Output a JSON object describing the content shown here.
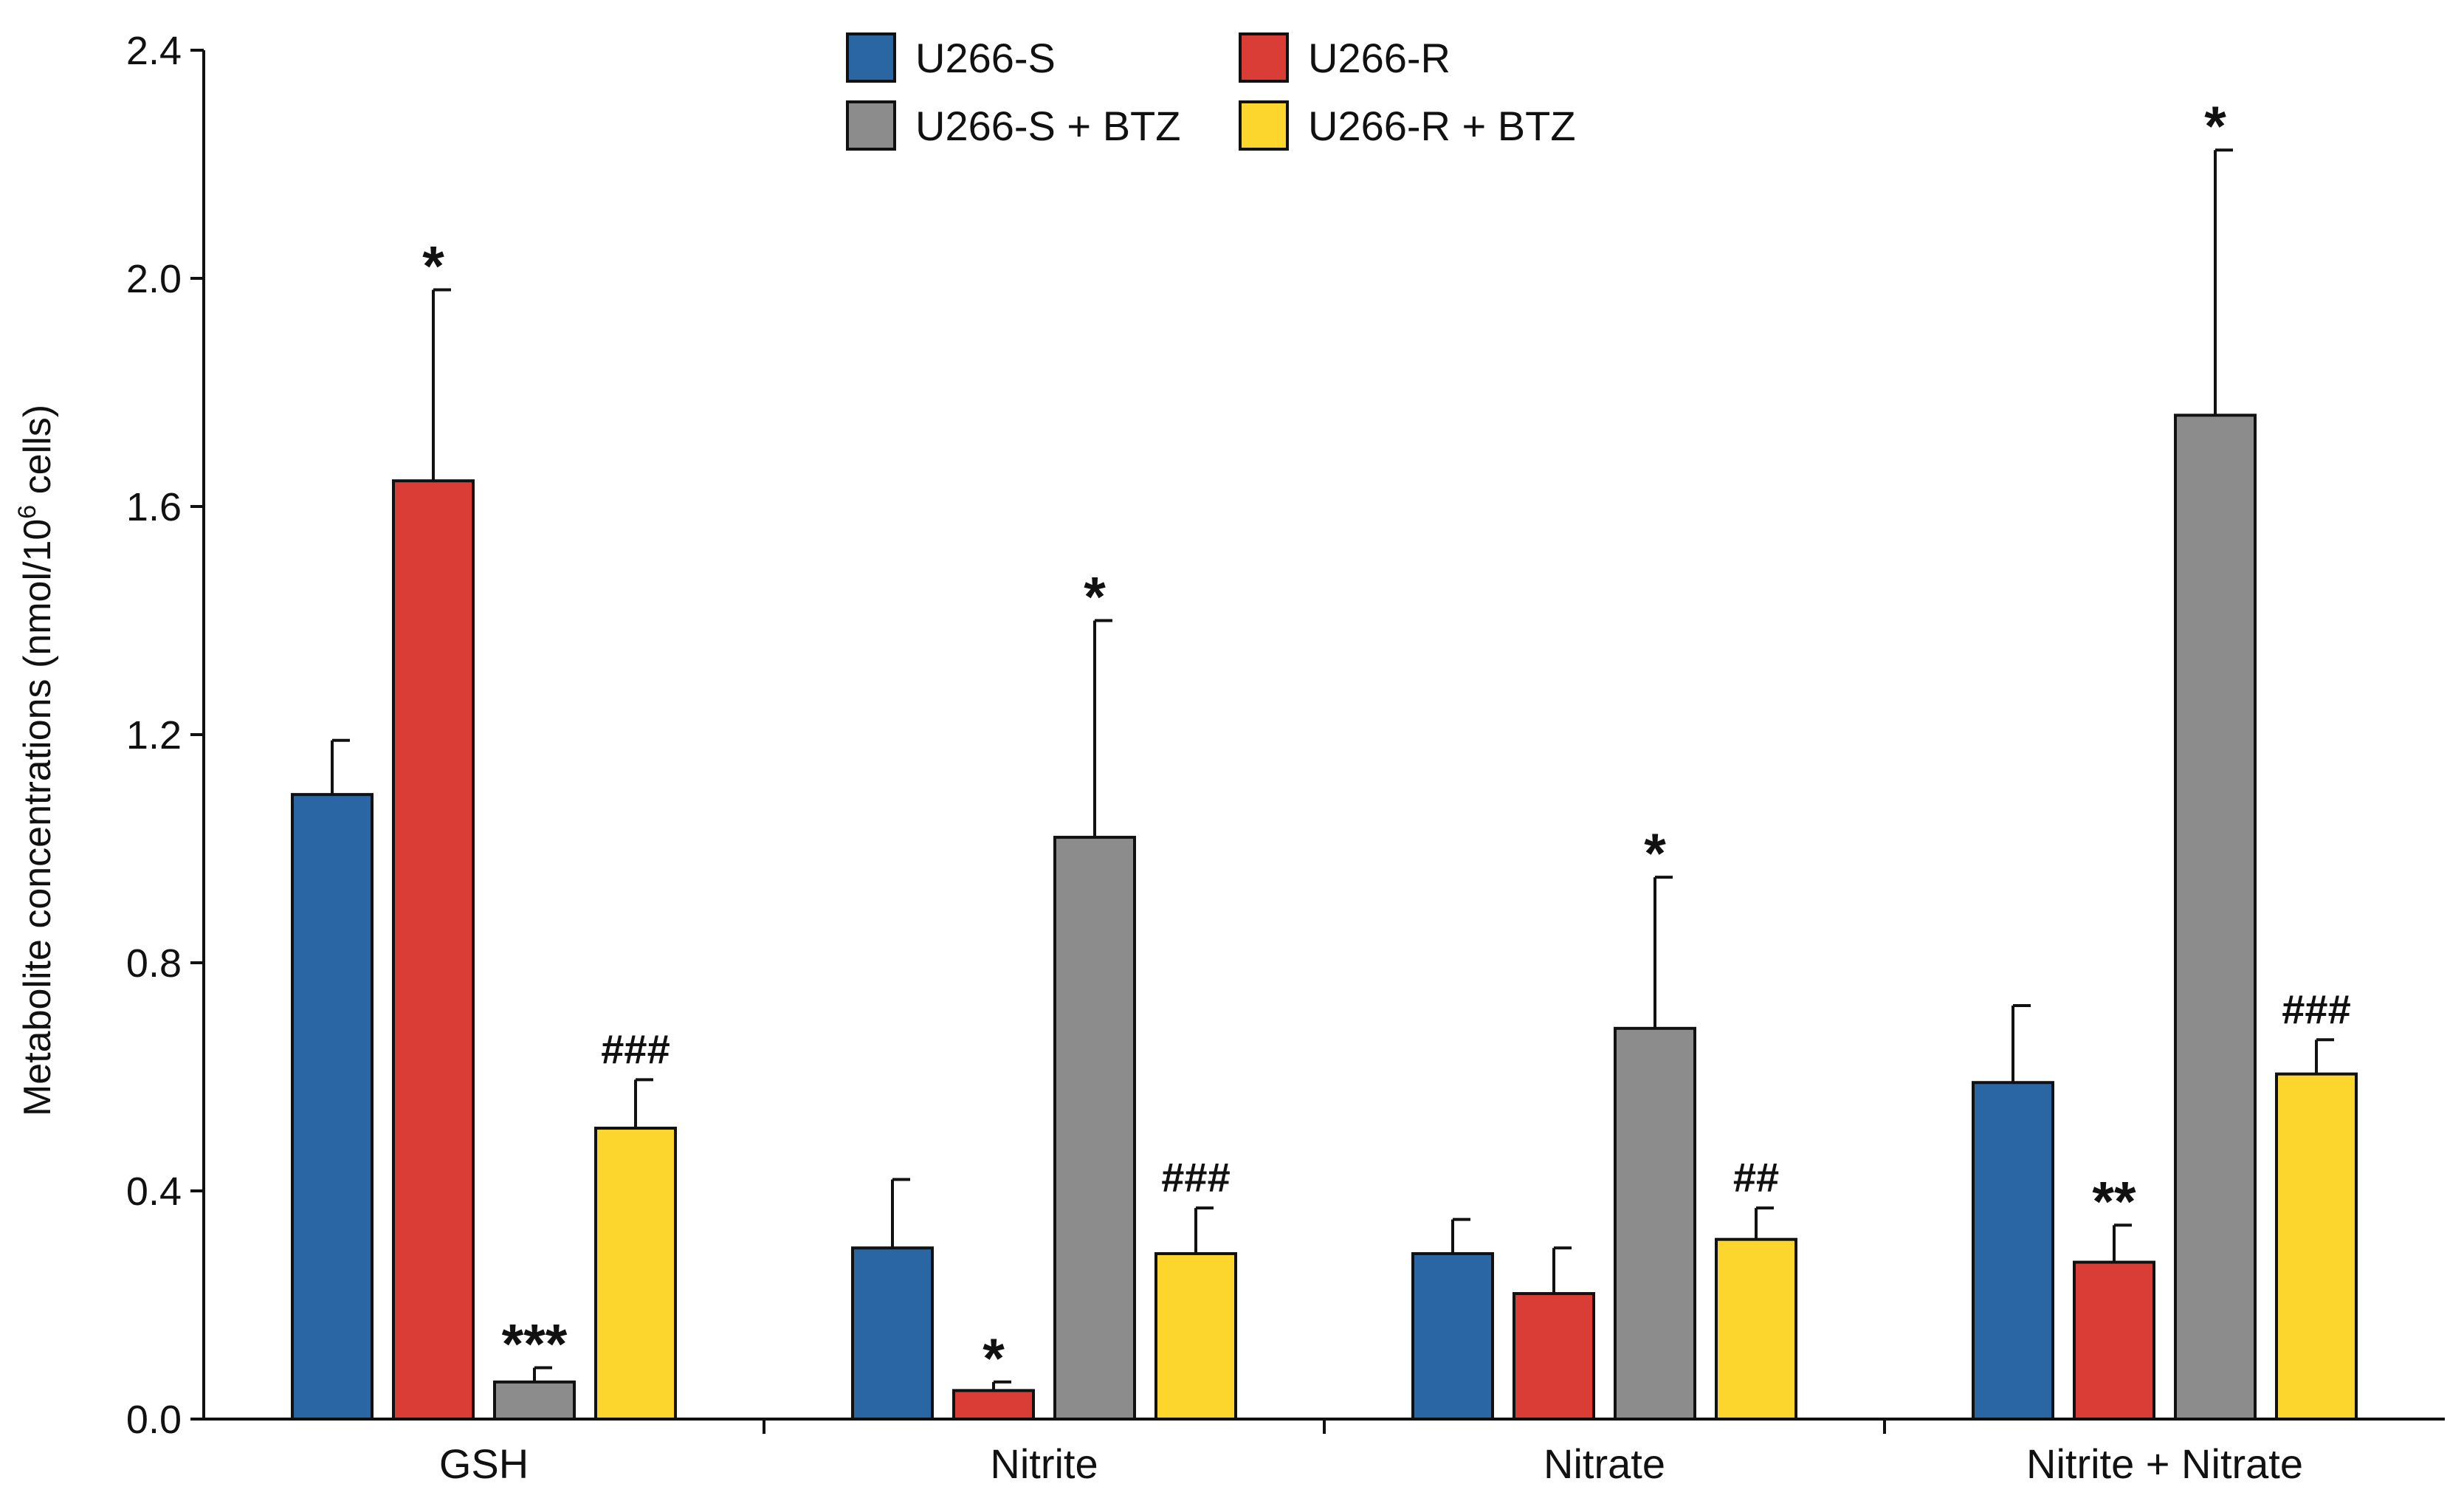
{
  "chart_data": {
    "type": "bar",
    "title": "",
    "xlabel": "",
    "ylabel": "Metabolite concentrations (nmol/10",
    "ylabel_superscript": "6",
    "ylabel_suffix": " cells)",
    "ylim": [
      0,
      2.4
    ],
    "yticks": [
      "0.0",
      "0.4",
      "0.8",
      "1.2",
      "1.6",
      "2.0",
      "2.4"
    ],
    "grid": false,
    "legend_position": "top-center",
    "categories": [
      "GSH",
      "Nitrite",
      "Nitrate",
      "Nitrite + Nitrate"
    ],
    "series": [
      {
        "name": "U266-S",
        "color": "#2a66a3",
        "values": [
          1.095,
          0.3,
          0.29,
          0.59
        ],
        "errors": [
          0.095,
          0.12,
          0.06,
          0.135
        ],
        "annotations": [
          "",
          "",
          "",
          ""
        ]
      },
      {
        "name": "U266-R",
        "color": "#d93d35",
        "values": [
          1.645,
          0.05,
          0.22,
          0.275
        ],
        "errors": [
          0.335,
          0.015,
          0.08,
          0.065
        ],
        "annotations": [
          "*",
          "*",
          "",
          "**"
        ]
      },
      {
        "name": "U266-S + BTZ",
        "color": "#8c8c8c",
        "values": [
          0.065,
          1.02,
          0.685,
          1.76
        ],
        "errors": [
          0.025,
          0.38,
          0.265,
          0.465
        ],
        "annotations": [
          "***",
          "*",
          "*",
          "*"
        ]
      },
      {
        "name": "U266-R + BTZ",
        "color": "#fcd62d",
        "values": [
          0.51,
          0.29,
          0.315,
          0.605
        ],
        "errors": [
          0.085,
          0.08,
          0.055,
          0.06
        ],
        "annotations": [
          "###",
          "###",
          "##",
          "###"
        ]
      }
    ]
  }
}
